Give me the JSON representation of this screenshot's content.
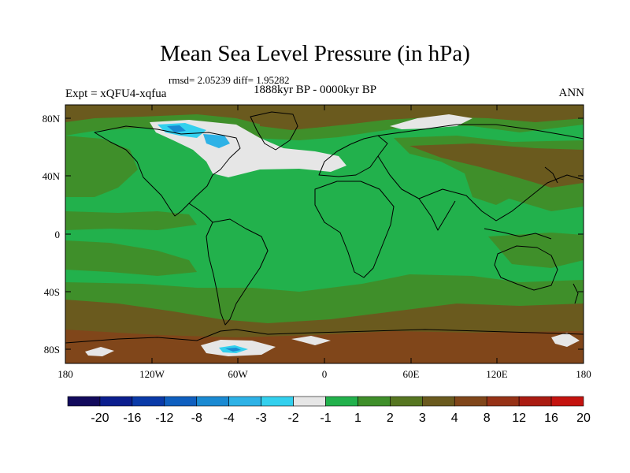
{
  "title": "Mean Sea Level Pressure (in hPa)",
  "stats": "rmsd= 2.05239 diff= 1.95282",
  "period": "1888kyr BP - 0000kyr BP",
  "experiment": "Expt = xQFU4-xqfua",
  "season": "ANN",
  "lat_labels": [
    "80N",
    "40N",
    "0",
    "40S",
    "80S"
  ],
  "lon_labels": [
    "180",
    "120W",
    "60W",
    "0",
    "60E",
    "120E",
    "180"
  ],
  "colorbar": {
    "labels": [
      "-20",
      "-16",
      "-12",
      "-8",
      "-4",
      "-3",
      "-2",
      "-1",
      "1",
      "2",
      "3",
      "4",
      "8",
      "12",
      "16",
      "20"
    ],
    "colors": [
      "#120a5c",
      "#0b1e8e",
      "#0a3aa8",
      "#0f5fbf",
      "#1a8ad2",
      "#2eb2e6",
      "#33d0ee",
      "#e6e6e6",
      "#22b14c",
      "#3f8f2a",
      "#567621",
      "#6a5a1e",
      "#80461a",
      "#963216",
      "#aa1c12",
      "#c4130f"
    ]
  }
}
